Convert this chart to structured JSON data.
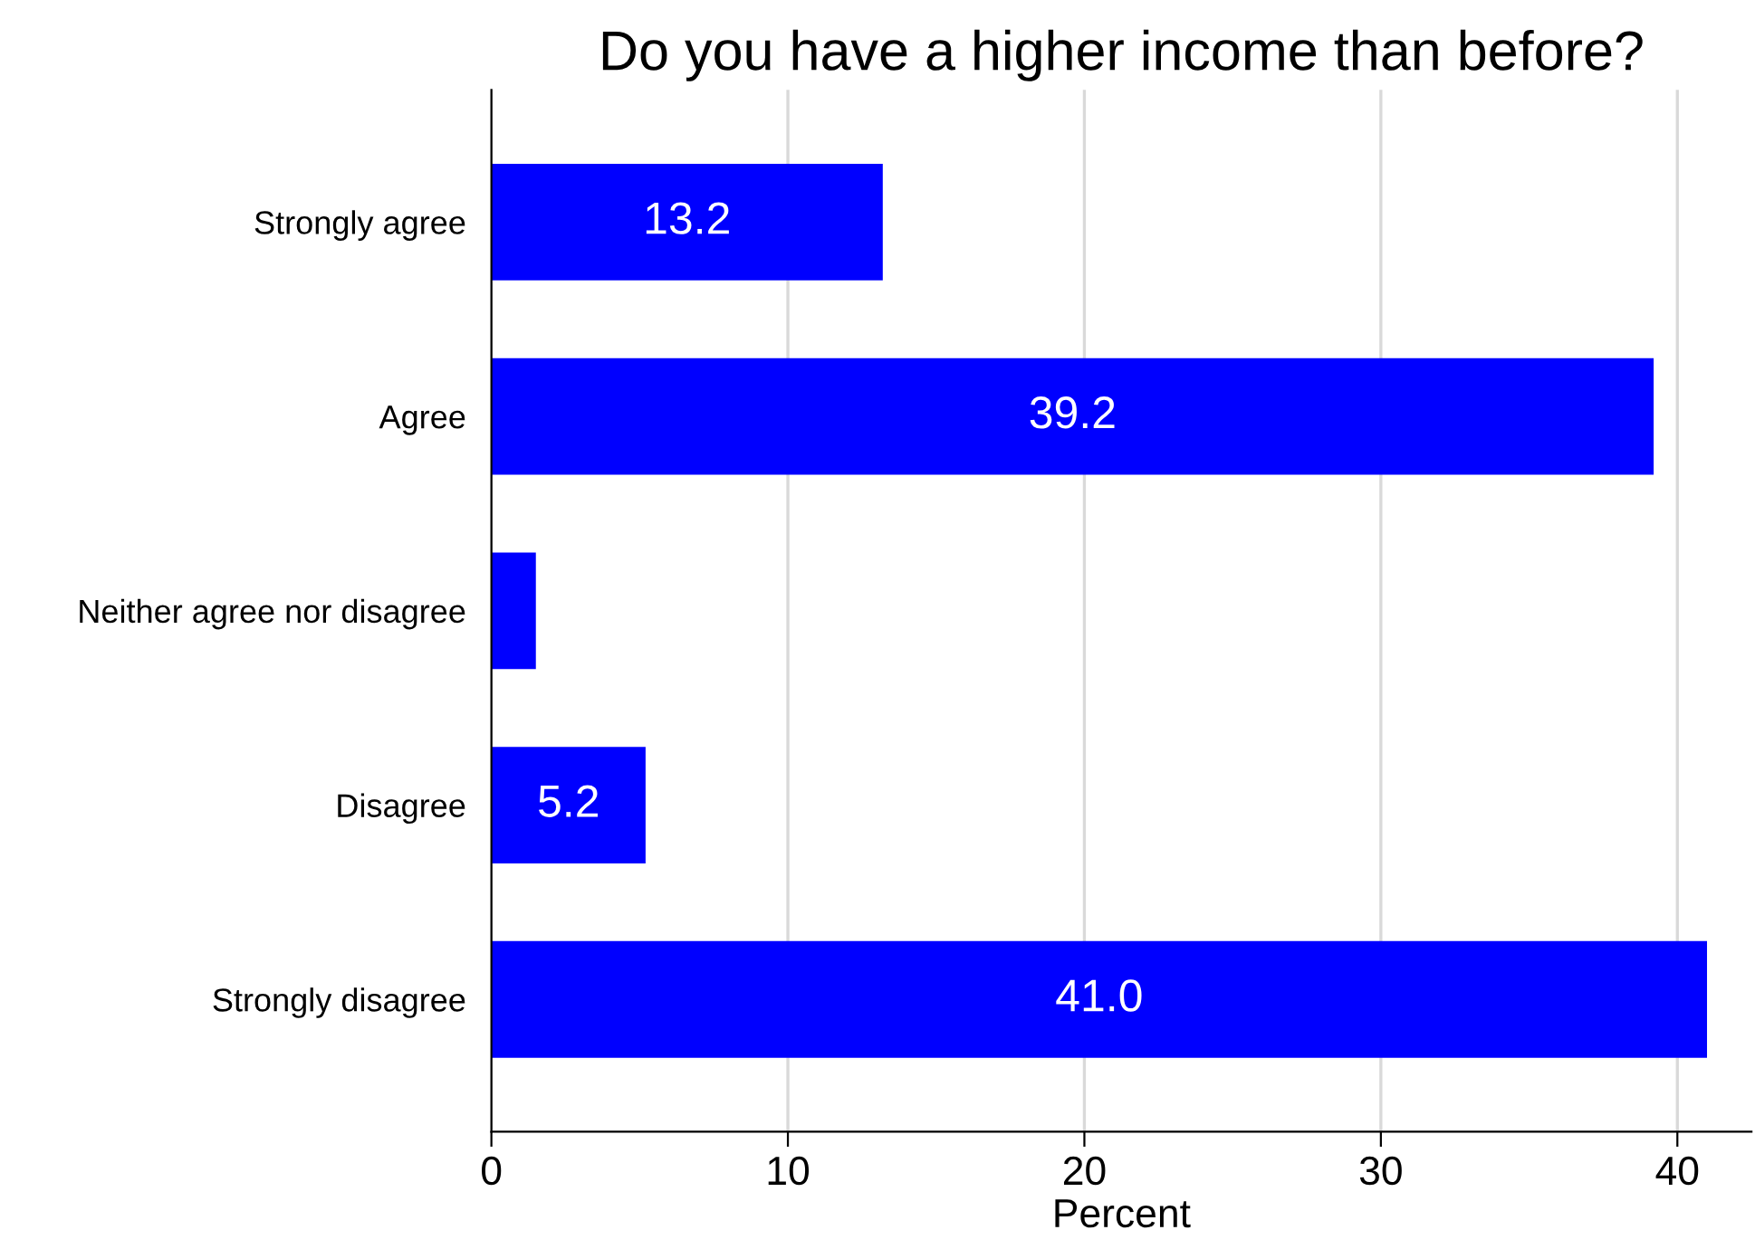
{
  "chart_data": {
    "type": "bar",
    "title": "Do you have a higher income than before?",
    "xlabel": "Percent",
    "orientation": "horizontal",
    "categories": [
      "Strongly agree",
      "Agree",
      "Neither agree nor disagree",
      "Disagree",
      "Strongly disagree"
    ],
    "values": [
      13.2,
      39.2,
      1.5,
      5.2,
      41.0
    ],
    "value_labels": [
      "13.2",
      "39.2",
      null,
      "5.2",
      "41.0"
    ],
    "color": "#0000ff",
    "xlim": [
      0,
      42.5
    ],
    "xticks": [
      0,
      10,
      20,
      30,
      40
    ],
    "grid": "x",
    "legend": false
  }
}
